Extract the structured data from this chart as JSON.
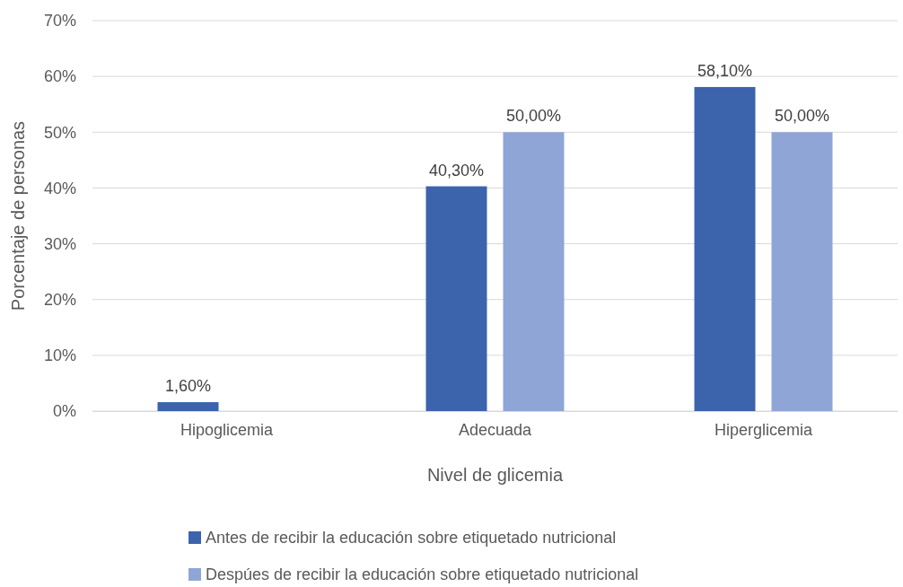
{
  "chart_data": {
    "type": "bar",
    "xlabel": "Nivel de glicemia",
    "ylabel": "Porcentaje de personas",
    "categories": [
      "Hipoglicemia",
      "Adecuada",
      "Hiperglicemia"
    ],
    "series": [
      {
        "name": "Antes de recibir la educación sobre etiquetado nutricional",
        "color": "#3c64ad",
        "values": [
          1.6,
          40.3,
          58.1
        ],
        "value_labels": [
          "1,60%",
          "40,30%",
          "58,10%"
        ]
      },
      {
        "name": "Despúes de recibir la educación sobre etiquetado nutricional",
        "color": "#8fa5d6",
        "values": [
          null,
          50,
          50
        ],
        "value_labels": [
          null,
          "50,00%",
          "50,00%"
        ]
      }
    ],
    "ylim": [
      0,
      70
    ],
    "yticks": [
      {
        "value": 0,
        "label": "0%"
      },
      {
        "value": 10,
        "label": "10%"
      },
      {
        "value": 20,
        "label": "20%"
      },
      {
        "value": 30,
        "label": "30%"
      },
      {
        "value": 40,
        "label": "40%"
      },
      {
        "value": 50,
        "label": "50%"
      },
      {
        "value": 60,
        "label": "60%"
      },
      {
        "value": 70,
        "label": "70%"
      }
    ],
    "grid": "y",
    "legend": "bottom"
  }
}
